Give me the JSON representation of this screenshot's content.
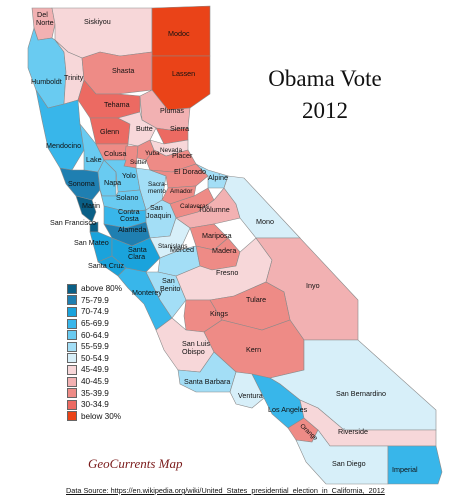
{
  "title_line1": "Obama Vote",
  "title_line2": "2012",
  "brand": "GeoCurrents Map",
  "source": "Data Source: https://en.wikipedia.org/wiki/United_States_presidential_election_in_California,_2012",
  "legend": [
    {
      "label": "above 80%",
      "color": "#0a5f86"
    },
    {
      "label": "75-79.9",
      "color": "#1f7fb1"
    },
    {
      "label": "70-74.9",
      "color": "#1aa3dc"
    },
    {
      "label": "65-69.9",
      "color": "#38b6ea"
    },
    {
      "label": "60-64.9",
      "color": "#69cbf1"
    },
    {
      "label": "55-59.9",
      "color": "#a3def6"
    },
    {
      "label": "50-54.9",
      "color": "#d7eff9"
    },
    {
      "label": "45-49.9",
      "color": "#f7d7d9"
    },
    {
      "label": "40-45.9",
      "color": "#f2b1b2"
    },
    {
      "label": "35-39.9",
      "color": "#ee8b86"
    },
    {
      "label": "30-34.9",
      "color": "#ec6a62"
    },
    {
      "label": "below 30%",
      "color": "#ea4318"
    }
  ],
  "counties": {
    "Del Norte": "#f2b1b2",
    "Siskiyou": "#f7d7d9",
    "Modoc": "#ea4318",
    "Humboldt": "#69cbf1",
    "Trinity": "#f7d7d9",
    "Shasta": "#ee8b86",
    "Lassen": "#ea4318",
    "Tehama": "#ec6a62",
    "Plumas": "#f2b1b2",
    "Mendocino": "#38b6ea",
    "Glenn": "#ec6a62",
    "Butte": "#f7d7d9",
    "Sierra": "#ec6a62",
    "Lake": "#69cbf1",
    "Colusa": "#ee8b86",
    "Sutter": "#ee8b86",
    "Yuba": "#ee8b86",
    "Nevada": "#f7d7d9",
    "Placer": "#ee8b86",
    "Sonoma": "#1f7fb1",
    "Napa": "#69cbf1",
    "Yolo": "#69cbf1",
    "Sacramento": "#a3def6",
    "El Dorado": "#ee8b86",
    "Alpine": "#a3def6",
    "Marin": "#0a5f86",
    "Solano": "#69cbf1",
    "Amador": "#ee8b86",
    "Calaveras": "#ee8b86",
    "Tuolumne": "#f2b1b2",
    "Mono": "#d7eff9",
    "San Francisco": "#0a5f86",
    "Contra Costa": "#38b6ea",
    "San Joaquin": "#a3def6",
    "Alameda": "#1f7fb1",
    "Stanislaus": "#d7eff9",
    "Mariposa": "#ee8b86",
    "San Mateo": "#1aa3dc",
    "Santa Clara": "#1aa3dc",
    "Merced": "#a3def6",
    "Madera": "#ee8b86",
    "Santa Cruz": "#1aa3dc",
    "Monterey": "#38b6ea",
    "San Benito": "#a3def6",
    "Fresno": "#f7d7d9",
    "Inyo": "#f2b1b2",
    "Kings": "#ee8b86",
    "Tulare": "#ee8b86",
    "San Luis Obispo": "#f7d7d9",
    "Kern": "#ee8b86",
    "San Bernardino": "#d7eff9",
    "Santa Barbara": "#a3def6",
    "Ventura": "#d7eff9",
    "Los Angeles": "#38b6ea",
    "Orange": "#ee8b86",
    "Riverside": "#f7d7d9",
    "San Diego": "#d7eff9",
    "Imperial": "#38b6ea"
  }
}
